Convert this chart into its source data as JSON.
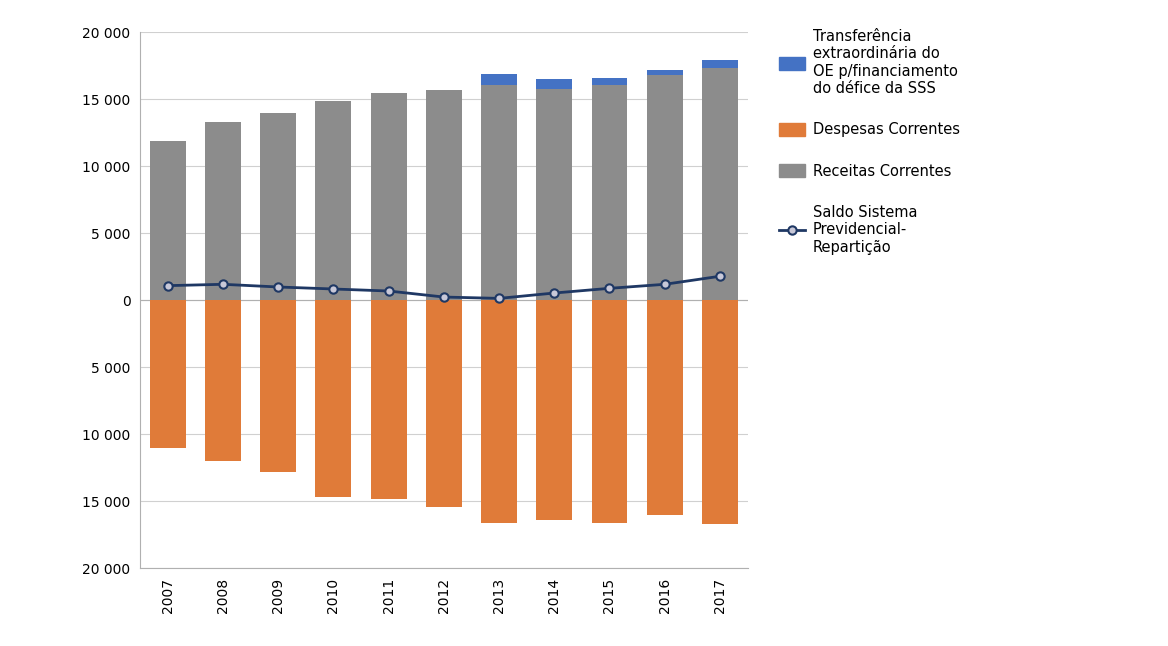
{
  "years": [
    2007,
    2008,
    2009,
    2010,
    2011,
    2012,
    2013,
    2014,
    2015,
    2016,
    2017
  ],
  "receitas_correntes": [
    11900,
    13300,
    14000,
    14900,
    15500,
    15700,
    16100,
    15800,
    16100,
    16800,
    17300
  ],
  "transferencia_extraordinaria": [
    0,
    0,
    0,
    0,
    0,
    0,
    800,
    700,
    500,
    400,
    600
  ],
  "despesas_correntes": [
    11000,
    12000,
    12800,
    14700,
    14800,
    15400,
    16600,
    16400,
    16600,
    16000,
    16700
  ],
  "saldo": [
    1100,
    1200,
    1000,
    850,
    700,
    250,
    150,
    550,
    900,
    1200,
    1800
  ],
  "bar_color_receitas": "#8c8c8c",
  "bar_color_transferencia": "#4472c4",
  "bar_color_despesas": "#e07b39",
  "line_color": "#1f3864",
  "marker_face": "#c8c8d8",
  "ylim_min": -20000,
  "ylim_max": 20000,
  "ytick_vals": [
    20000,
    15000,
    10000,
    5000,
    0,
    -5000,
    -10000,
    -15000,
    -20000
  ],
  "ytick_labels": [
    "20 000",
    "15 000",
    "10 000",
    "5 000",
    "0",
    "5 000",
    "10 000",
    "15 000",
    "20 000"
  ],
  "legend_transferencia": "Transferência\nextraordinária do\nOE p/financiamento\ndo défice da SSS",
  "legend_despesas": "Despesas Correntes",
  "legend_receitas": "Receitas Correntes",
  "legend_saldo": "Saldo Sistema\nPrevidencial-\nRepartição",
  "background_color": "#ffffff",
  "grid_color": "#d0d0d0",
  "spine_color": "#b0b0b0"
}
